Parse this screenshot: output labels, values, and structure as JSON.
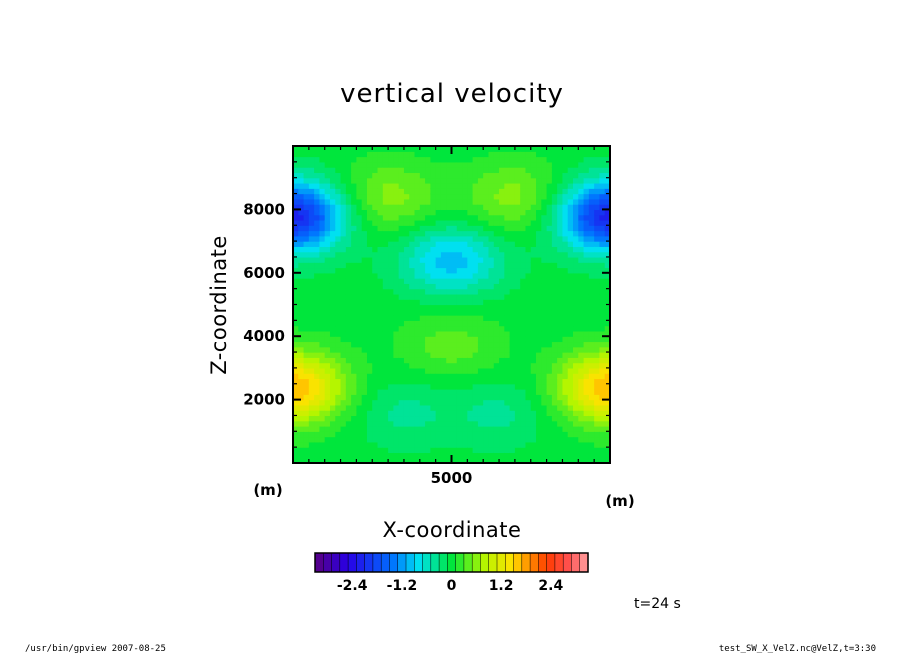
{
  "chart_data": {
    "type": "heatmap",
    "title": "vertical velocity",
    "xlabel": "X-coordinate",
    "ylabel": "Z-coordinate",
    "x_unit": "(m)",
    "y_unit": "(m)",
    "xlim": [
      0,
      10000
    ],
    "ylim": [
      0,
      10000
    ],
    "x_ticks": [
      5000
    ],
    "y_ticks": [
      2000,
      4000,
      6000,
      8000
    ],
    "time_label": "t=24 s",
    "colorbar": {
      "min": -3.3,
      "max": 3.3,
      "step": 0.2,
      "ticks": [
        "-2.4",
        "-1.2",
        "0",
        "1.2",
        "2.4"
      ],
      "tick_values": [
        -2.4,
        -1.2,
        0,
        1.2,
        2.4
      ]
    },
    "features": [
      {
        "x": 0,
        "z": 7800,
        "value": -2.2
      },
      {
        "x": 10000,
        "z": 7800,
        "value": -2.2
      },
      {
        "x": 5000,
        "z": 6400,
        "value": -1.0
      },
      {
        "x": 0,
        "z": 2400,
        "value": 1.7
      },
      {
        "x": 10000,
        "z": 2400,
        "value": 1.7
      },
      {
        "x": 3000,
        "z": 8400,
        "value": 0.6
      },
      {
        "x": 7000,
        "z": 8400,
        "value": 0.6
      },
      {
        "x": 5000,
        "z": 3700,
        "value": 0.4
      },
      {
        "x": 3500,
        "z": 1600,
        "value": -0.35
      },
      {
        "x": 6500,
        "z": 1600,
        "value": -0.35
      }
    ]
  },
  "footer": {
    "left": "/usr/bin/gpview  2007-08-25",
    "right": "test_SW_X_VelZ.nc@VelZ,t=3:30"
  }
}
